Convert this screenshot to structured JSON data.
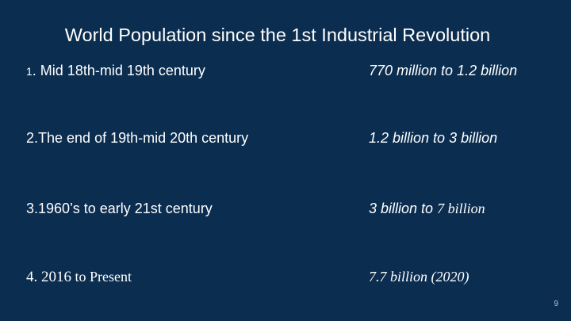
{
  "slide": {
    "title": "World Population since the 1st Industrial Revolution",
    "page_number": "9",
    "rows": [
      {
        "index": "1",
        "label": ". Mid 18th-mid 19th century",
        "value": "770 million to 1.2 billion"
      },
      {
        "label": "2.The end of 19th-mid 20th century",
        "value": "1.2 billion to 3 billion"
      },
      {
        "label": "3.1960’s to  early 21st century",
        "value_part1": "3 billion to ",
        "value_part2": "7 billion"
      },
      {
        "label_part1": "4. 2016",
        "label_part2": " to Present",
        "value": "7.7 billion (2020)"
      }
    ]
  }
}
